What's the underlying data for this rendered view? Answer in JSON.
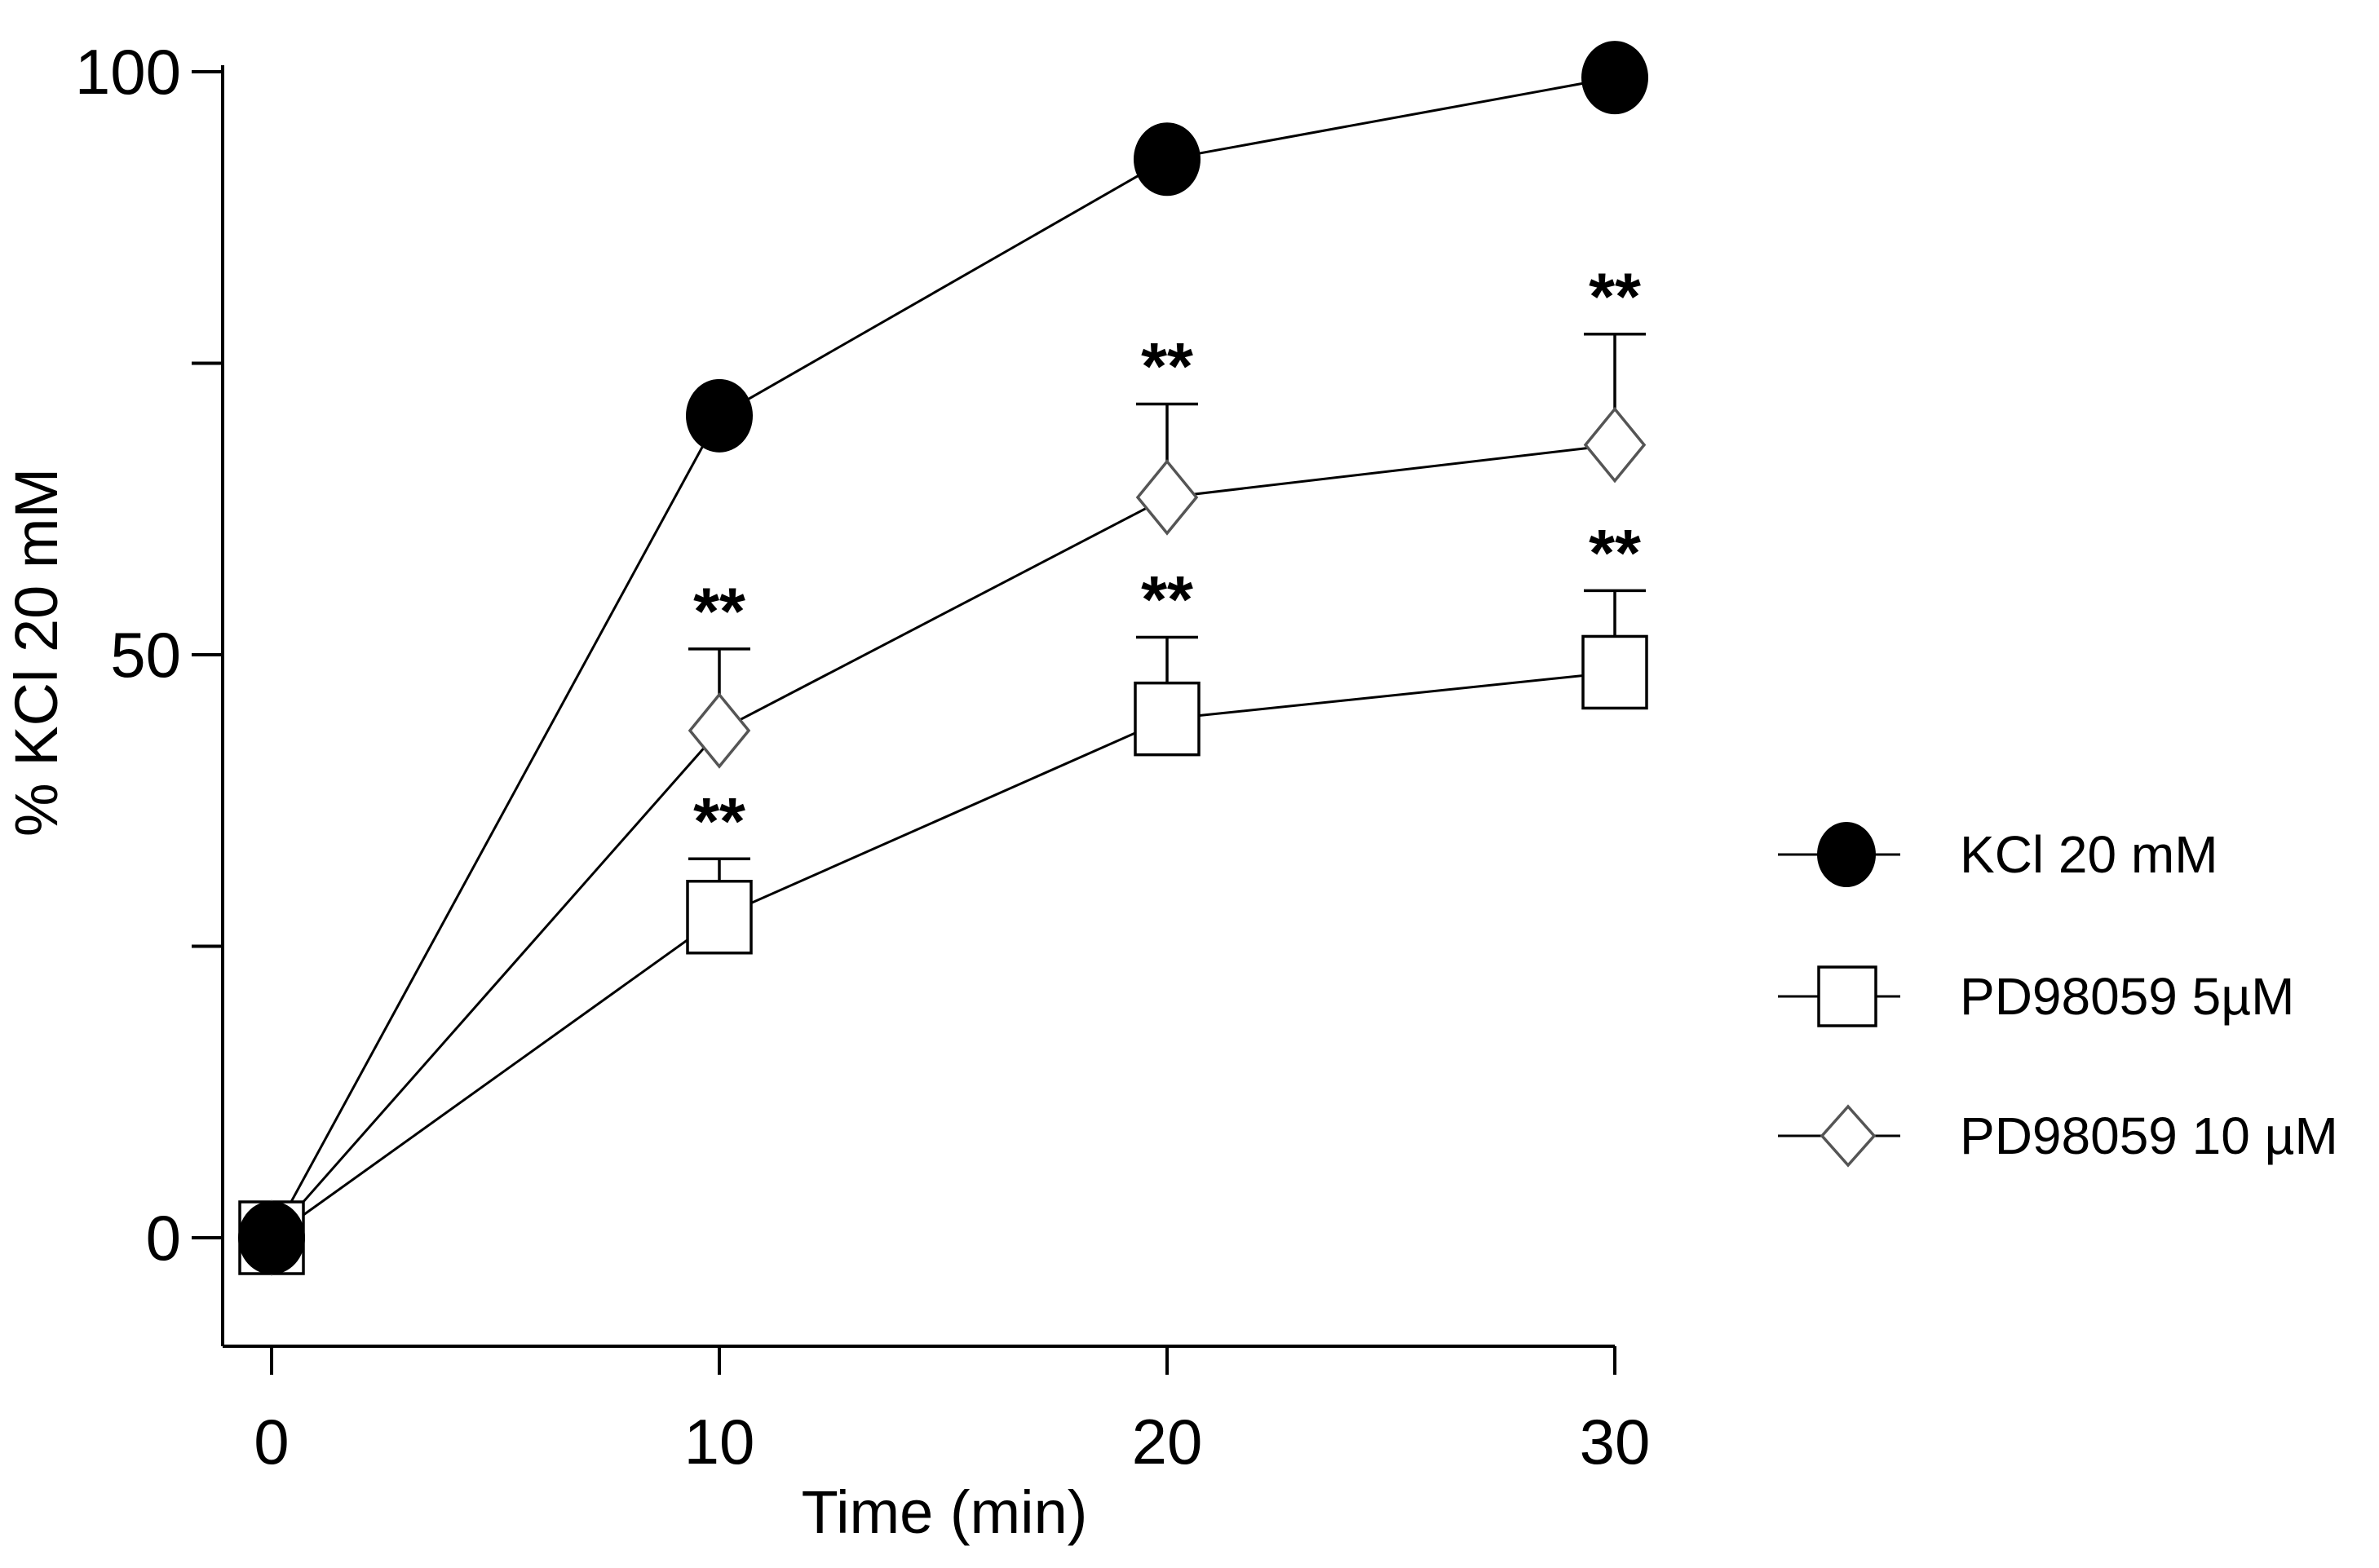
{
  "chart_data": {
    "type": "line",
    "title": "",
    "xlabel": "Time (min)",
    "ylabel": "% KCl 20 mM",
    "x": [
      0,
      10,
      20,
      30
    ],
    "x_ticks": [
      "0",
      "10",
      "20",
      "30"
    ],
    "y_ticks": [
      "0",
      "50",
      "100"
    ],
    "xlim": [
      -1.1,
      30.4
    ],
    "ylim": [
      -9,
      100
    ],
    "grid": false,
    "legend_position": "right",
    "series": [
      {
        "name": "KCl 20 mM",
        "marker": "filled-circle",
        "values": [
          0,
          70.5,
          92.5,
          99.5
        ],
        "error_upper": [
          null,
          null,
          null,
          null
        ],
        "significance": [
          "",
          "",
          "",
          ""
        ]
      },
      {
        "name": "PD98059 5µM",
        "marker": "open-square",
        "values": [
          0,
          27.5,
          44.5,
          48.5
        ],
        "error_upper": [
          null,
          32.5,
          51.5,
          55.5
        ],
        "significance": [
          "",
          "**",
          "**",
          "**"
        ]
      },
      {
        "name": "PD98059 10 µM",
        "marker": "open-diamond",
        "values": [
          0,
          43.5,
          63.5,
          68
        ],
        "error_upper": [
          null,
          50.5,
          71.5,
          77.5
        ],
        "significance": [
          "",
          "**",
          "**",
          "**"
        ]
      }
    ]
  }
}
